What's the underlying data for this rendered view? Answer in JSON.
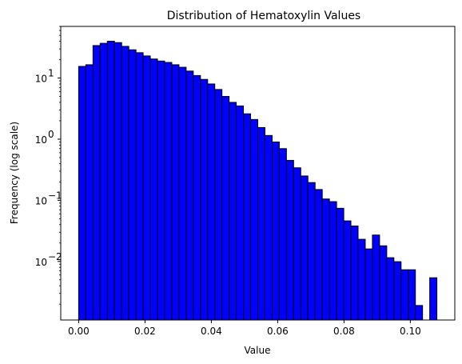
{
  "chart_data": {
    "type": "bar",
    "title": "Distribution of Hematoxylin Values",
    "xlabel": "Value",
    "ylabel": "Frequency (log scale)",
    "yscale": "log",
    "xlim": [
      -0.0054,
      0.1134
    ],
    "ylim": [
      0.0011,
      70
    ],
    "grid": false,
    "bar_color": "#0000ff",
    "edge_color": "#000000",
    "bin_width": 0.00216,
    "x_ticks": [
      0.0,
      0.02,
      0.04,
      0.06,
      0.08,
      0.1
    ],
    "x_tick_labels": [
      "0.00",
      "0.02",
      "0.04",
      "0.06",
      "0.08",
      "0.10"
    ],
    "y_ticks": [
      0.01,
      0.1,
      1,
      10
    ],
    "y_tick_labels": [
      "10",
      "10",
      "10",
      "10"
    ],
    "y_tick_exponents": [
      "−2",
      "−1",
      "0",
      "1"
    ],
    "bin_starts": [
      0.0,
      0.00216,
      0.00432,
      0.00648,
      0.00864,
      0.0108,
      0.01296,
      0.01512,
      0.01728,
      0.01944,
      0.0216,
      0.02376,
      0.02592,
      0.02808,
      0.03024,
      0.0324,
      0.03456,
      0.03672,
      0.03888,
      0.04104,
      0.0432,
      0.04536,
      0.04752,
      0.04968,
      0.05184,
      0.054,
      0.05616,
      0.05832,
      0.06048,
      0.06264,
      0.0648,
      0.06696,
      0.06912,
      0.07128,
      0.07344,
      0.0756,
      0.07776,
      0.07992,
      0.08208,
      0.08424,
      0.0864,
      0.08856,
      0.09072,
      0.09288,
      0.09504,
      0.0972,
      0.09936,
      0.10152,
      0.10368,
      0.10584
    ],
    "values": [
      15.5,
      16.5,
      34,
      37,
      40,
      38,
      33,
      29,
      26,
      23,
      20.5,
      19,
      18,
      16.5,
      15,
      13,
      11,
      9.5,
      8,
      6.5,
      5,
      4,
      3.5,
      2.6,
      2.1,
      1.55,
      1.15,
      0.9,
      0.7,
      0.45,
      0.34,
      0.25,
      0.195,
      0.15,
      0.105,
      0.095,
      0.074,
      0.046,
      0.038,
      0.023,
      0.016,
      0.027,
      0.018,
      0.0115,
      0.0099,
      0.0073,
      0.0073,
      0.0019,
      0,
      0.0054
    ]
  }
}
